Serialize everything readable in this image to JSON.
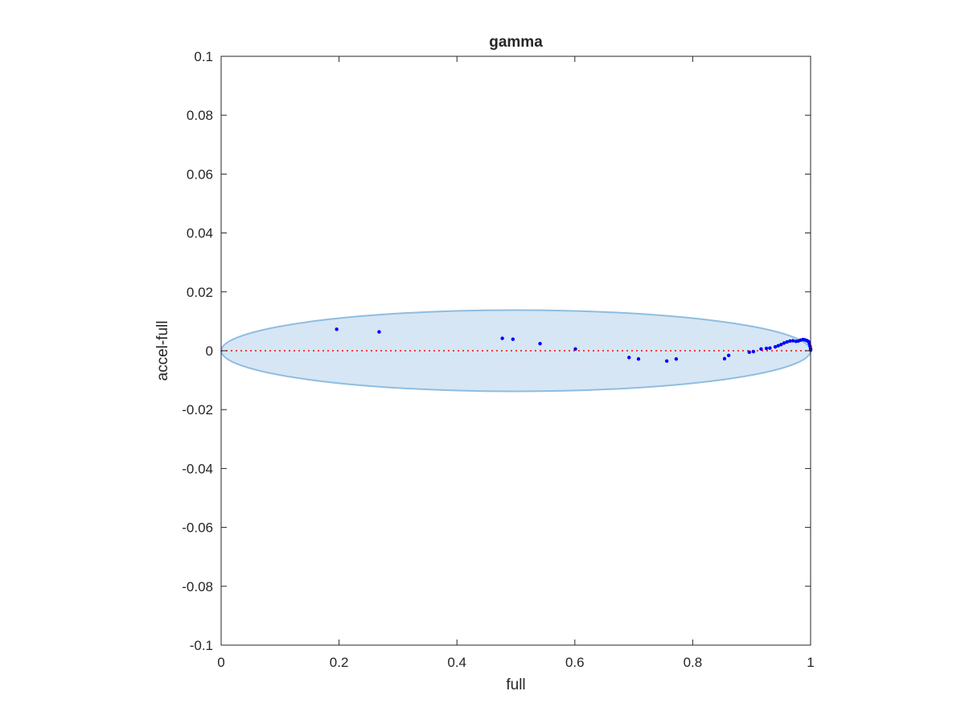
{
  "chart_data": {
    "type": "scatter",
    "title": "gamma",
    "xlabel": "full",
    "ylabel": "accel-full",
    "xlim": [
      0,
      1
    ],
    "ylim": [
      -0.1,
      0.1
    ],
    "x_ticks": [
      0,
      0.2,
      0.4,
      0.6,
      0.8,
      1
    ],
    "x_tick_labels": [
      "0",
      "0.2",
      "0.4",
      "0.6",
      "0.8",
      "1"
    ],
    "y_ticks": [
      0.1,
      0.08,
      0.06,
      0.04,
      0.02,
      0,
      -0.02,
      -0.04,
      -0.06,
      -0.08,
      -0.1
    ],
    "y_tick_labels": [
      "0.1",
      "0.08",
      "0.06",
      "0.04",
      "0.02",
      "0",
      "-0.02",
      "-0.04",
      "-0.06",
      "-0.08",
      "-0.1"
    ],
    "grid": false,
    "box": true,
    "reference_line": {
      "y": 0,
      "style": "dotted",
      "color": "#ff0000"
    },
    "ellipse": {
      "cx": 0.5,
      "cy": 0,
      "rx": 0.5,
      "ry": 0.0138,
      "fill": "#d6e6f4",
      "stroke": "#8fbde0"
    },
    "series": [
      {
        "marker_color": "#0000ff",
        "points": [
          [
            0.196,
            0.0073
          ],
          [
            0.268,
            0.0064
          ],
          [
            0.477,
            0.0042
          ],
          [
            0.495,
            0.0039
          ],
          [
            0.541,
            0.0024
          ],
          [
            0.601,
            0.0006
          ],
          [
            0.692,
            -0.0023
          ],
          [
            0.708,
            -0.0028
          ],
          [
            0.756,
            -0.0035
          ],
          [
            0.772,
            -0.0028
          ],
          [
            0.854,
            -0.0027
          ],
          [
            0.861,
            -0.0016
          ],
          [
            0.896,
            -0.0005
          ],
          [
            0.903,
            -0.0003
          ],
          [
            0.916,
            0.0006
          ],
          [
            0.925,
            0.0008
          ],
          [
            0.931,
            0.0009
          ],
          [
            0.94,
            0.0013
          ],
          [
            0.945,
            0.0017
          ],
          [
            0.95,
            0.0021
          ],
          [
            0.955,
            0.0026
          ],
          [
            0.96,
            0.003
          ],
          [
            0.965,
            0.0033
          ],
          [
            0.97,
            0.0034
          ],
          [
            0.975,
            0.0032
          ],
          [
            0.979,
            0.0033
          ],
          [
            0.983,
            0.0036
          ],
          [
            0.987,
            0.0038
          ],
          [
            0.99,
            0.0037
          ],
          [
            0.993,
            0.0035
          ],
          [
            0.995,
            0.0033
          ],
          [
            0.997,
            0.003
          ],
          [
            0.998,
            0.0024
          ],
          [
            0.999,
            0.0016
          ],
          [
            1.0,
            0.0008
          ],
          [
            1.0,
            0.0002
          ]
        ]
      }
    ]
  }
}
